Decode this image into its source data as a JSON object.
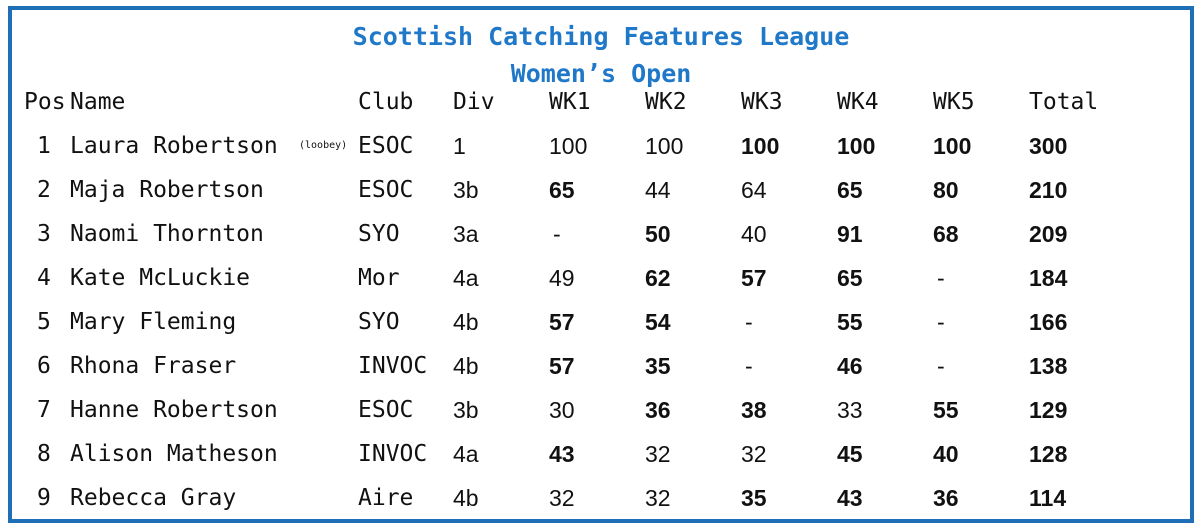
{
  "title": "Scottish Catching Features League",
  "subtitle": "Women’s Open",
  "colors": {
    "accent": "#1f78c8",
    "border": "#1f6fb8"
  },
  "headers": {
    "pos": "Pos",
    "name": "Name",
    "club": "Club",
    "div": "Div",
    "wk1": "WK1",
    "wk2": "WK2",
    "wk3": "WK3",
    "wk4": "WK4",
    "wk5": "WK5",
    "total": "Total"
  },
  "rows": [
    {
      "pos": "1",
      "name": "Laura Robertson",
      "alias": "(loobey)",
      "club": "ESOC",
      "div": "1",
      "wk1": "100",
      "wk2": "100",
      "wk3": "100",
      "wk4": "100",
      "wk5": "100",
      "total": "300",
      "bold": [
        false,
        false,
        true,
        true,
        true
      ]
    },
    {
      "pos": "2",
      "name": "Maja Robertson",
      "club": "ESOC",
      "div": "3b",
      "wk1": "65",
      "wk2": "44",
      "wk3": "64",
      "wk4": "65",
      "wk5": "80",
      "total": "210",
      "bold": [
        true,
        false,
        false,
        true,
        true
      ]
    },
    {
      "pos": "3",
      "name": "Naomi Thornton",
      "club": "SYO",
      "div": "3a",
      "wk1": "-",
      "wk2": "50",
      "wk3": "40",
      "wk4": "91",
      "wk5": "68",
      "total": "209",
      "bold": [
        false,
        true,
        false,
        true,
        true
      ]
    },
    {
      "pos": "4",
      "name": "Kate McLuckie",
      "club": "Mor",
      "div": "4a",
      "wk1": "49",
      "wk2": "62",
      "wk3": "57",
      "wk4": "65",
      "wk5": "-",
      "total": "184",
      "bold": [
        false,
        true,
        true,
        true,
        false
      ]
    },
    {
      "pos": "5",
      "name": "Mary Fleming",
      "club": "SYO",
      "div": "4b",
      "wk1": "57",
      "wk2": "54",
      "wk3": "-",
      "wk4": "55",
      "wk5": "-",
      "total": "166",
      "bold": [
        true,
        true,
        false,
        true,
        false
      ]
    },
    {
      "pos": "6",
      "name": "Rhona Fraser",
      "club": "INVOC",
      "div": "4b",
      "wk1": "57",
      "wk2": "35",
      "wk3": "-",
      "wk4": "46",
      "wk5": "-",
      "total": "138",
      "bold": [
        true,
        true,
        false,
        true,
        false
      ]
    },
    {
      "pos": "7",
      "name": "Hanne Robertson",
      "club": "ESOC",
      "div": "3b",
      "wk1": "30",
      "wk2": "36",
      "wk3": "38",
      "wk4": "33",
      "wk5": "55",
      "total": "129",
      "bold": [
        false,
        true,
        true,
        false,
        true
      ]
    },
    {
      "pos": "8",
      "name": "Alison Matheson",
      "club": "INVOC",
      "div": "4a",
      "wk1": "43",
      "wk2": "32",
      "wk3": "32",
      "wk4": "45",
      "wk5": "40",
      "total": "128",
      "bold": [
        true,
        false,
        false,
        true,
        true
      ]
    },
    {
      "pos": "9",
      "name": "Rebecca Gray",
      "club": "Aire",
      "div": "4b",
      "wk1": "32",
      "wk2": "32",
      "wk3": "35",
      "wk4": "43",
      "wk5": "36",
      "total": "114",
      "bold": [
        false,
        false,
        true,
        true,
        true
      ]
    }
  ]
}
